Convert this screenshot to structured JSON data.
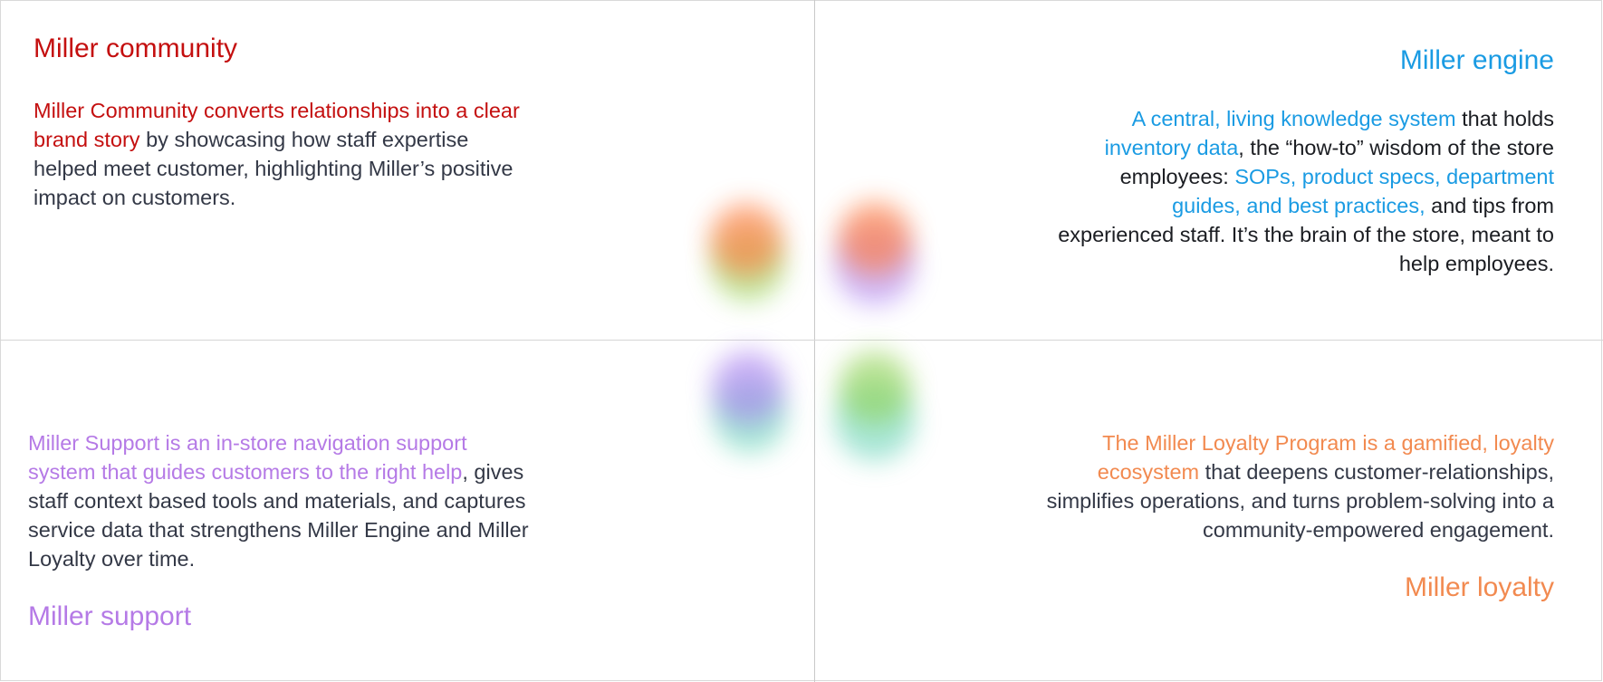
{
  "community": {
    "title": "Miller community",
    "highlight": "Miller Community converts relationships into a clear brand story",
    "rest": " by showcasing how staff expertise helped meet customer, highlighting Miller’s positive impact on customers."
  },
  "engine": {
    "title": "Miller engine",
    "hl1": "A central, living knowledge system",
    "t1": " that holds ",
    "hl2": "inventory data",
    "t2": ", the “how-to” wisdom of the store employees: ",
    "hl3": "SOPs, product specs, department guides, and best practices,",
    "t3": " and tips from experienced staff. It’s the brain of the store, meant to help employees."
  },
  "support": {
    "title": "Miller support",
    "highlight": "Miller Support is an in-store navigation support system that guides customers to the right help",
    "rest": ", gives staff context based tools and materials, and captures service data that strengthens Miller Engine and Miller Loyalty over time."
  },
  "loyalty": {
    "title": "Miller loyalty",
    "highlight": "The Miller Loyalty Program is a gamified, loyalty ecosystem",
    "rest": " that deepens customer-relationships, simplifies operations, and turns problem-solving into a community-empowered engagement."
  },
  "colors": {
    "community": "#c40f0f",
    "engine": "#1a9be3",
    "support": "#b57ae6",
    "loyalty": "#f28a50",
    "blob_orange": "#ff7a3d",
    "blob_green": "#8fd14f",
    "blob_purple": "#a77bf0",
    "blob_teal": "#5fd1b4"
  }
}
